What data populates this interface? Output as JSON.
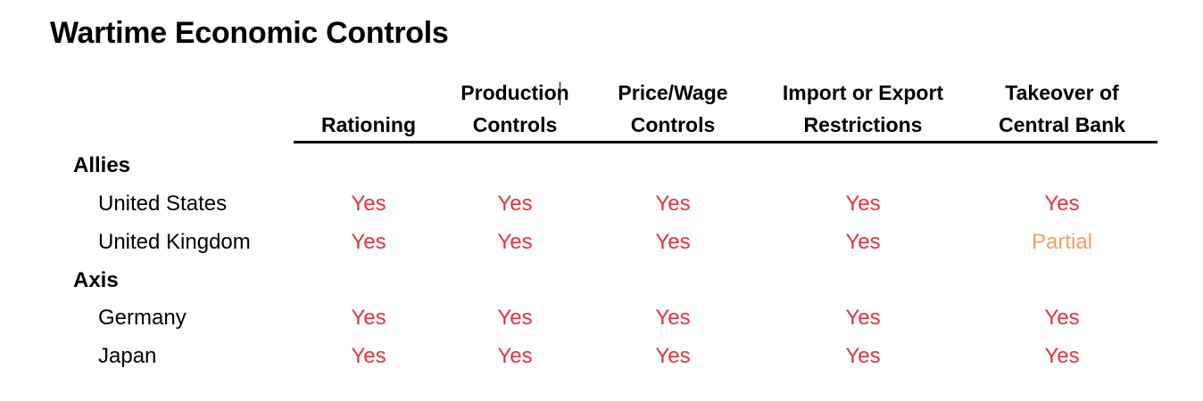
{
  "title": "Wartime Economic Controls",
  "columns": [
    "Rationing",
    "Production Controls",
    "Price/Wage Controls",
    "Import or Export Restrictions",
    "Takeover of Central Bank"
  ],
  "column_lines": [
    [
      "",
      "Rationing"
    ],
    [
      "Production",
      "Controls"
    ],
    [
      "Price/Wage",
      "Controls"
    ],
    [
      "Import or Export",
      "Restrictions"
    ],
    [
      "Takeover of",
      "Central Bank"
    ]
  ],
  "groups": [
    {
      "label": "Allies",
      "rows": [
        {
          "country": "United States",
          "values": [
            "Yes",
            "Yes",
            "Yes",
            "Yes",
            "Yes"
          ]
        },
        {
          "country": "United Kingdom",
          "values": [
            "Yes",
            "Yes",
            "Yes",
            "Yes",
            "Partial"
          ]
        }
      ]
    },
    {
      "label": "Axis",
      "rows": [
        {
          "country": "Germany",
          "values": [
            "Yes",
            "Yes",
            "Yes",
            "Yes",
            "Yes"
          ]
        },
        {
          "country": "Japan",
          "values": [
            "Yes",
            "Yes",
            "Yes",
            "Yes",
            "Yes"
          ]
        }
      ]
    }
  ],
  "colors": {
    "yes": "#e8323c",
    "partial": "#f0a062",
    "text": "#000000",
    "rule": "#000000"
  }
}
